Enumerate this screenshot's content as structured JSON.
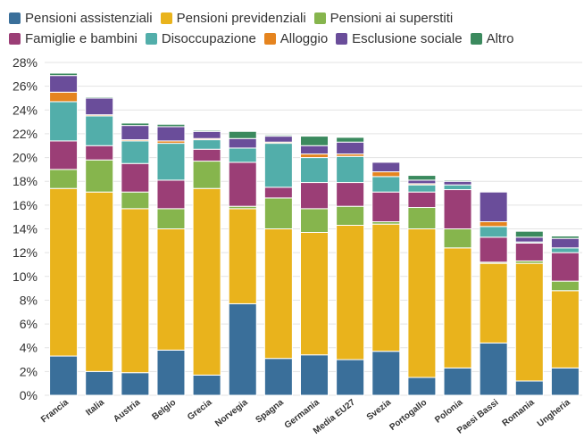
{
  "chart_data": {
    "type": "bar",
    "stacked": true,
    "categories": [
      "Francia",
      "Italia",
      "Austria",
      "Belgio",
      "Grecia",
      "Norvegia",
      "Spagna",
      "Germania",
      "Media EU27",
      "Svezia",
      "Portogallo",
      "Polonia",
      "Paesi Bassi",
      "Romania",
      "Ungheria"
    ],
    "y_ticks": [
      "0%",
      "2%",
      "4%",
      "6%",
      "8%",
      "10%",
      "12%",
      "14%",
      "16%",
      "18%",
      "20%",
      "22%",
      "24%",
      "26%",
      "28%"
    ],
    "ylim": [
      0,
      28
    ],
    "grid": true,
    "legend_position": "top",
    "series": [
      {
        "name": "Pensioni assistenziali",
        "color": "#3a6f9a",
        "values": [
          3.3,
          2.0,
          1.9,
          3.8,
          1.7,
          7.7,
          3.1,
          3.4,
          3.0,
          3.7,
          1.5,
          2.3,
          4.4,
          1.2,
          2.3
        ]
      },
      {
        "name": "Pensioni previdenziali",
        "color": "#e9b31c",
        "values": [
          14.1,
          15.1,
          13.8,
          10.2,
          15.7,
          8.0,
          10.9,
          10.3,
          11.3,
          10.7,
          12.5,
          10.1,
          6.7,
          9.9,
          6.5
        ]
      },
      {
        "name": "Pensioni ai superstiti",
        "color": "#86b54d",
        "values": [
          1.6,
          2.7,
          1.4,
          1.7,
          2.3,
          0.2,
          2.6,
          2.0,
          1.6,
          0.2,
          1.8,
          1.6,
          0.1,
          0.2,
          0.8
        ]
      },
      {
        "name": "Famiglie e bambini",
        "color": "#9b3e76",
        "values": [
          2.4,
          1.2,
          2.4,
          2.4,
          1.0,
          3.7,
          0.9,
          2.2,
          2.0,
          2.5,
          1.3,
          3.3,
          2.1,
          1.5,
          2.4
        ]
      },
      {
        "name": "Disoccupazione",
        "color": "#52aeaa",
        "values": [
          3.3,
          2.5,
          1.9,
          3.1,
          0.8,
          1.2,
          3.7,
          2.1,
          2.2,
          1.3,
          0.6,
          0.4,
          0.9,
          0.1,
          0.4
        ]
      },
      {
        "name": "Alloggio",
        "color": "#e5841f",
        "values": [
          0.8,
          0.1,
          0.1,
          0.2,
          0.1,
          0.0,
          0.1,
          0.3,
          0.2,
          0.4,
          0.1,
          0.0,
          0.4,
          0.0,
          0.0
        ]
      },
      {
        "name": "Esclusione sociale",
        "color": "#6a4d9a",
        "values": [
          1.4,
          1.4,
          1.2,
          1.2,
          0.6,
          0.8,
          0.5,
          0.7,
          1.0,
          0.8,
          0.3,
          0.3,
          2.5,
          0.4,
          0.8
        ]
      },
      {
        "name": "Altro",
        "color": "#3b8a5e",
        "values": [
          0.2,
          0.1,
          0.2,
          0.2,
          0.1,
          0.6,
          0.1,
          0.8,
          0.4,
          0.0,
          0.4,
          0.1,
          0.0,
          0.5,
          0.2
        ]
      }
    ]
  }
}
